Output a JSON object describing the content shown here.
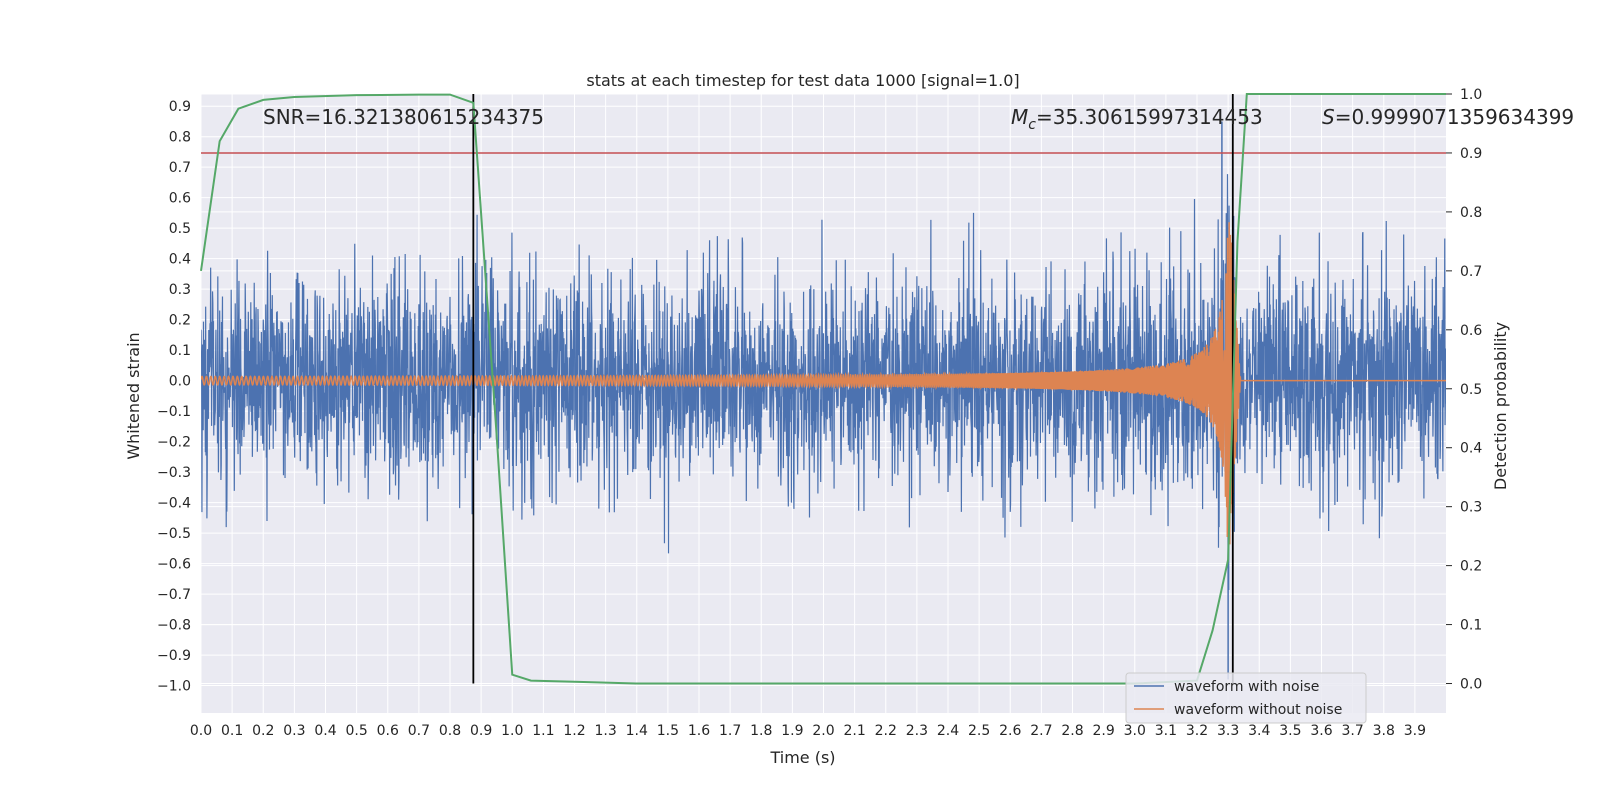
{
  "chart_data": {
    "type": "line",
    "title": "stats at each timestep for test data 1000 [signal=1.0]",
    "xlabel": "Time (s)",
    "ylabel_left": "Whitened strain",
    "ylabel_right": "Detection probability",
    "xlim": [
      0.0,
      4.0
    ],
    "ylim_left": [
      -1.09,
      0.94
    ],
    "ylim_right": [
      -0.05,
      1.0
    ],
    "x_ticks": [
      "0.0",
      "0.1",
      "0.2",
      "0.3",
      "0.4",
      "0.5",
      "0.6",
      "0.7",
      "0.8",
      "0.9",
      "1.0",
      "1.1",
      "1.2",
      "1.3",
      "1.4",
      "1.5",
      "1.6",
      "1.7",
      "1.8",
      "1.9",
      "2.0",
      "2.1",
      "2.2",
      "2.3",
      "2.4",
      "2.5",
      "2.6",
      "2.7",
      "2.8",
      "2.9",
      "3.0",
      "3.1",
      "3.2",
      "3.3",
      "3.4",
      "3.5",
      "3.6",
      "3.7",
      "3.8",
      "3.9"
    ],
    "y_ticks_left": [
      "-1.0",
      "-0.9",
      "-0.8",
      "-0.7",
      "-0.6",
      "-0.5",
      "-0.4",
      "-0.3",
      "-0.2",
      "-0.1",
      "0.0",
      "0.1",
      "0.2",
      "0.3",
      "0.4",
      "0.5",
      "0.6",
      "0.7",
      "0.8",
      "0.9"
    ],
    "y_ticks_right": [
      "0.0",
      "0.1",
      "0.2",
      "0.3",
      "0.4",
      "0.5",
      "0.6",
      "0.7",
      "0.8",
      "0.9",
      "1.0"
    ],
    "grid": true,
    "legend_position": "lower-right",
    "annotations": {
      "snr": "SNR=16.321380615234375",
      "mc_symbol": "M",
      "mc_sub": "c",
      "mc_value": "=35.30615997314453",
      "s_symbol": "S",
      "s_value": "=0.9999071359634399"
    },
    "vlines_x": [
      0.875,
      3.315
    ],
    "threshold_probability": 0.9,
    "series": [
      {
        "name": "waveform with noise",
        "axis": "left",
        "color": "#4c72b0",
        "description_stats": {
          "approx_std": 0.17,
          "x_start": 0.0,
          "x_end": 4.0,
          "peak_times": [
            3.28,
            3.3
          ],
          "peak_values": [
            0.85,
            -0.98
          ]
        }
      },
      {
        "name": "waveform without noise",
        "axis": "left",
        "color": "#dd8452",
        "chirp": {
          "t_merger": 3.3,
          "peak_amplitude": 0.62,
          "start_amplitude": 0.01
        }
      },
      {
        "axis": "right",
        "color": "#55a868",
        "x": [
          0.0,
          0.06,
          0.12,
          0.2,
          0.3,
          0.5,
          0.7,
          0.8,
          0.875,
          0.95,
          1.0,
          1.06,
          1.2,
          1.4,
          2.0,
          3.0,
          3.2,
          3.25,
          3.3,
          3.33,
          3.36,
          3.4,
          4.0
        ],
        "y": [
          0.7,
          0.92,
          0.975,
          0.99,
          0.995,
          0.998,
          0.999,
          0.999,
          0.985,
          0.42,
          0.015,
          0.005,
          0.003,
          0.0,
          0.0,
          0.0,
          0.005,
          0.09,
          0.21,
          0.75,
          1.0,
          1.0,
          1.0
        ]
      }
    ],
    "colors": {
      "background": "#eaeaf2",
      "grid": "#ffffff",
      "vline": "#000000",
      "threshold": "#c44e52",
      "legend_bg": "#eaeaf2"
    }
  }
}
